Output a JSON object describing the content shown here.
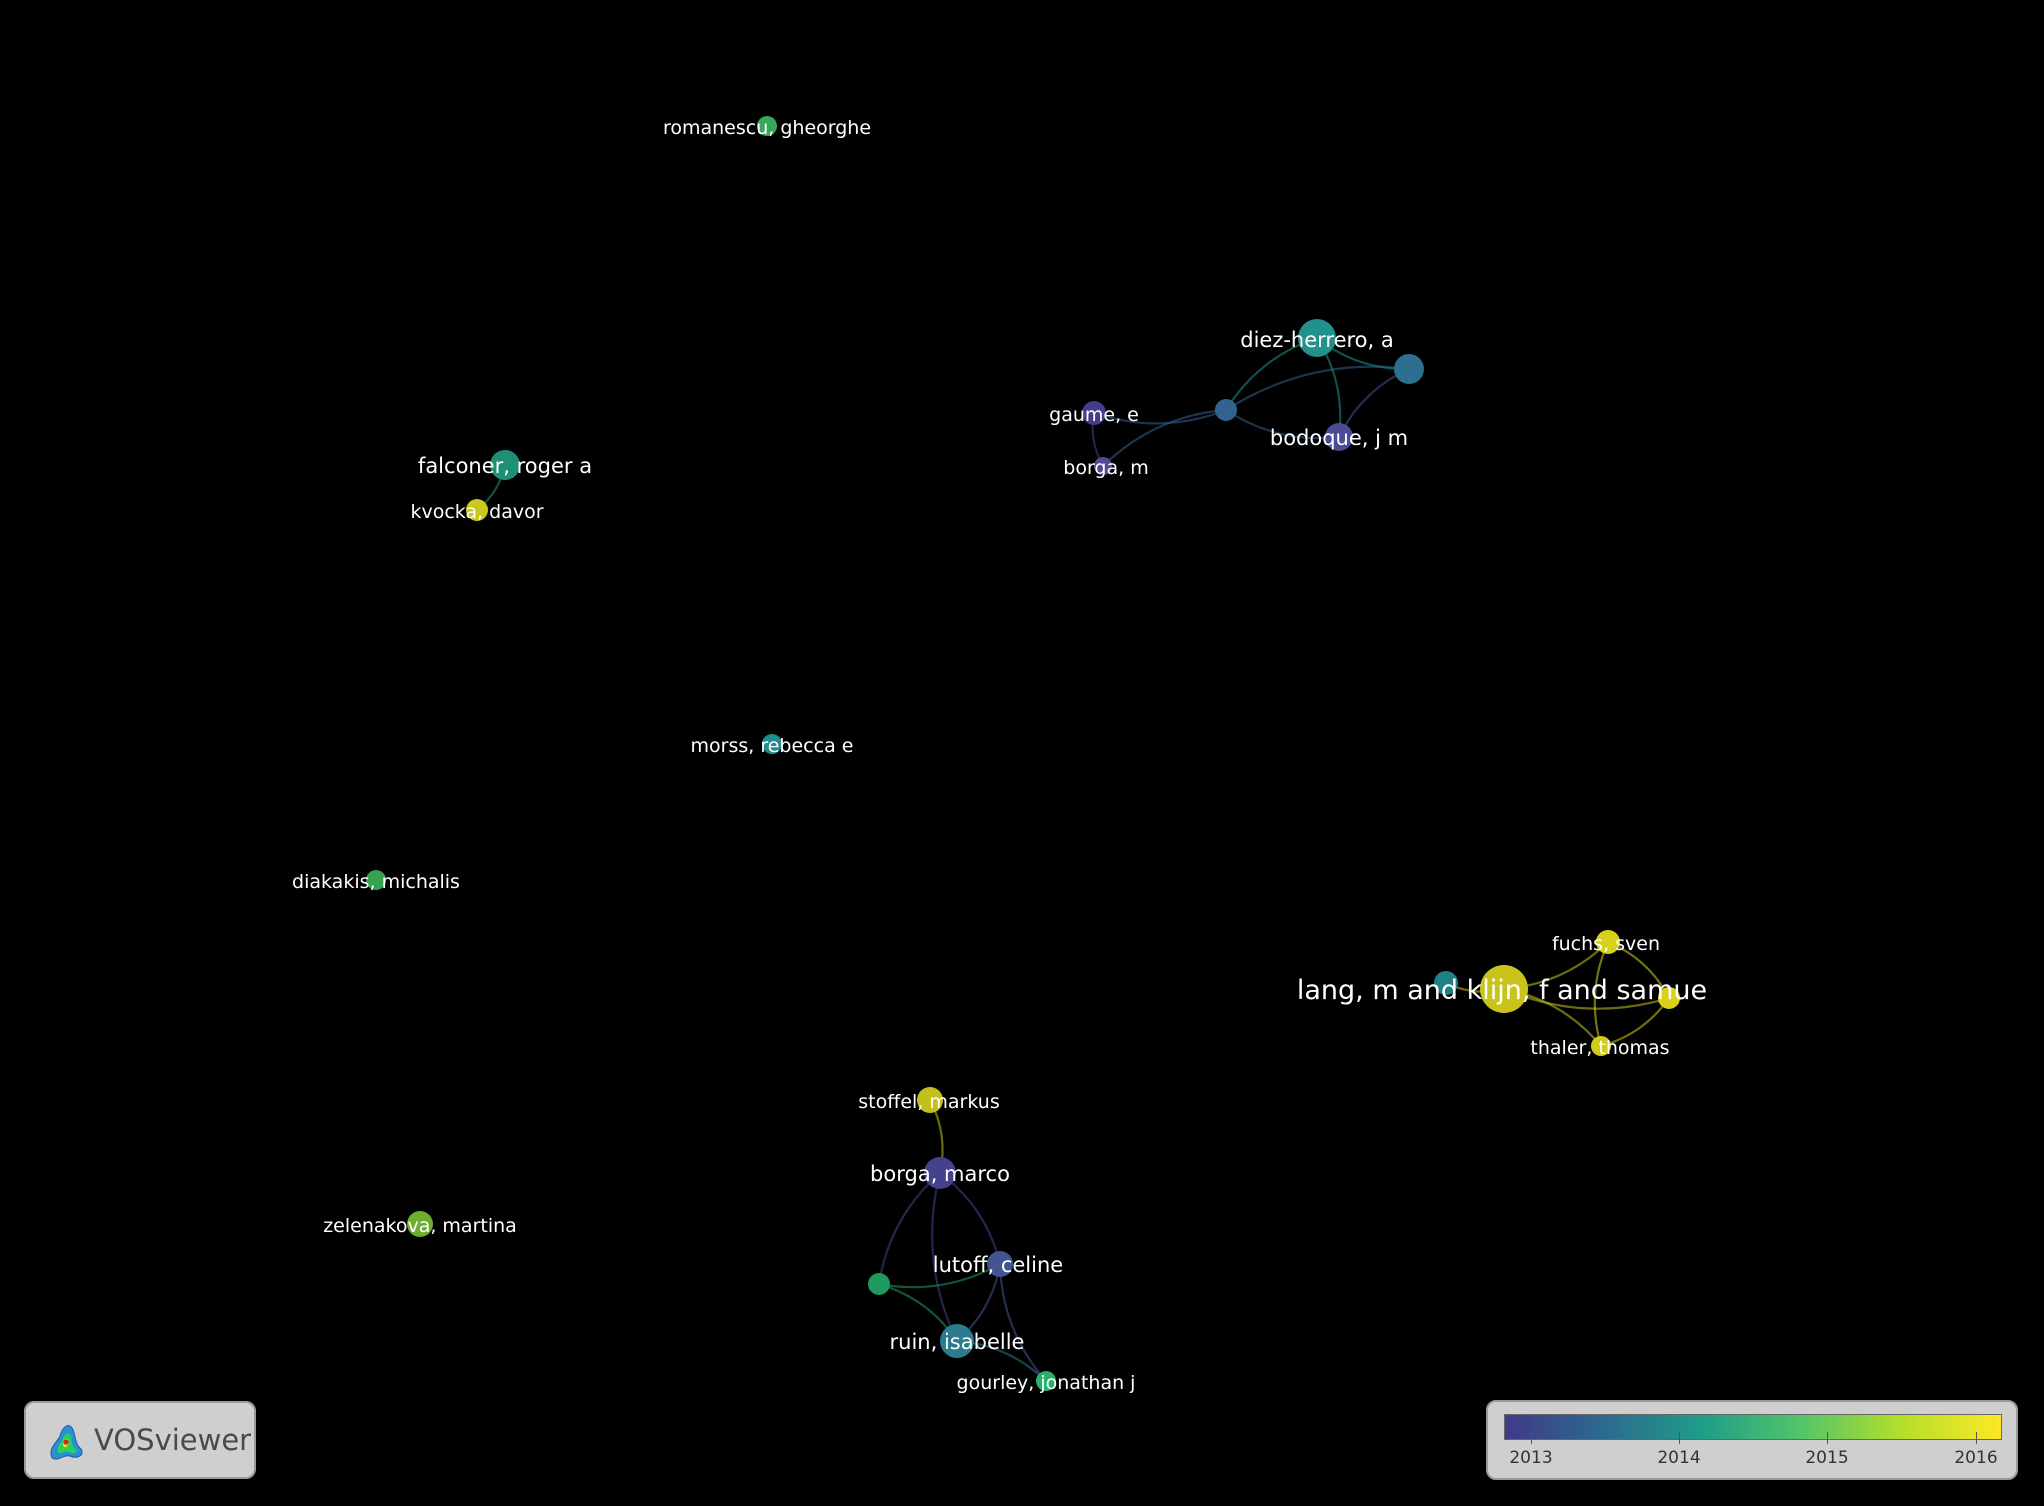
{
  "nodes": [
    {
      "id": "romanescu",
      "label": "romanescu, gheorghe",
      "color": "#3aa65a"
    },
    {
      "id": "diez",
      "label": "diez-herrero, a",
      "color": "#21918c"
    },
    {
      "id": "diez_u1",
      "label": "",
      "color": "#2c6f8e"
    },
    {
      "id": "gaume",
      "label": "gaume, e",
      "color": "#463c8c"
    },
    {
      "id": "diez_u2",
      "label": "",
      "color": "#31638e"
    },
    {
      "id": "bodoque",
      "label": "bodoque, j m",
      "color": "#4a4d95"
    },
    {
      "id": "borga_m",
      "label": "borga, m",
      "color": "#504c94"
    },
    {
      "id": "falconer",
      "label": "falconer, roger a",
      "color": "#1f9073"
    },
    {
      "id": "kvocka",
      "label": "kvocka, davor",
      "color": "#c8c81e"
    },
    {
      "id": "morss",
      "label": "morss, rebecca e",
      "color": "#218e8d"
    },
    {
      "id": "diakakis",
      "label": "diakakis, michalis",
      "color": "#37a252"
    },
    {
      "id": "fuchs",
      "label": "fuchs, sven",
      "color": "#d6d21a"
    },
    {
      "id": "lang",
      "label": "lang, m and klijn, f and samue",
      "color": "#c9c41c"
    },
    {
      "id": "lang_u1",
      "label": "",
      "color": "#1f8088"
    },
    {
      "id": "lang_u2",
      "label": "",
      "color": "#dbd218"
    },
    {
      "id": "thaler",
      "label": "thaler, thomas",
      "color": "#d2cb18"
    },
    {
      "id": "stoffel",
      "label": "stoffel, markus",
      "color": "#c3c01e"
    },
    {
      "id": "borga_marco",
      "label": "borga, marco",
      "color": "#46418c"
    },
    {
      "id": "zelenakova",
      "label": "zelenakova, martina",
      "color": "#6cae2e"
    },
    {
      "id": "lutoff",
      "label": "lutoff, celine",
      "color": "#435490"
    },
    {
      "id": "ruin_u1",
      "label": "",
      "color": "#1f9a5e"
    },
    {
      "id": "ruin",
      "label": "ruin, isabelle",
      "color": "#2a7c8e"
    },
    {
      "id": "gourley",
      "label": "gourley, jonathan j",
      "color": "#2ab06c"
    }
  ],
  "links": [
    [
      "diez",
      "diez_u2"
    ],
    [
      "diez",
      "bodoque"
    ],
    [
      "diez",
      "diez_u1"
    ],
    [
      "diez_u2",
      "diez_u1"
    ],
    [
      "diez_u2",
      "bodoque"
    ],
    [
      "diez_u2",
      "gaume"
    ],
    [
      "diez_u2",
      "borga_m"
    ],
    [
      "bodoque",
      "diez_u1"
    ],
    [
      "gaume",
      "borga_m"
    ],
    [
      "falconer",
      "kvocka"
    ],
    [
      "lang",
      "fuchs"
    ],
    [
      "lang",
      "thaler"
    ],
    [
      "lang",
      "lang_u2"
    ],
    [
      "lang",
      "lang_u1"
    ],
    [
      "fuchs",
      "thaler"
    ],
    [
      "fuchs",
      "lang_u2"
    ],
    [
      "thaler",
      "lang_u2"
    ],
    [
      "stoffel",
      "borga_marco"
    ],
    [
      "borga_marco",
      "ruin"
    ],
    [
      "borga_marco",
      "lutoff"
    ],
    [
      "borga_marco",
      "ruin_u1"
    ],
    [
      "ruin_u1",
      "ruin"
    ],
    [
      "ruin_u1",
      "lutoff"
    ],
    [
      "lutoff",
      "ruin"
    ],
    [
      "lutoff",
      "gourley"
    ],
    [
      "ruin",
      "gourley"
    ]
  ],
  "logo": {
    "name": "VOSviewer"
  },
  "legend": {
    "ticks": [
      "2013",
      "2014",
      "2015",
      "2016"
    ],
    "gradient_colors": [
      "#3f3a87",
      "#2c6a8e",
      "#1f9e89",
      "#54c568",
      "#b5de2b",
      "#fde725"
    ]
  }
}
